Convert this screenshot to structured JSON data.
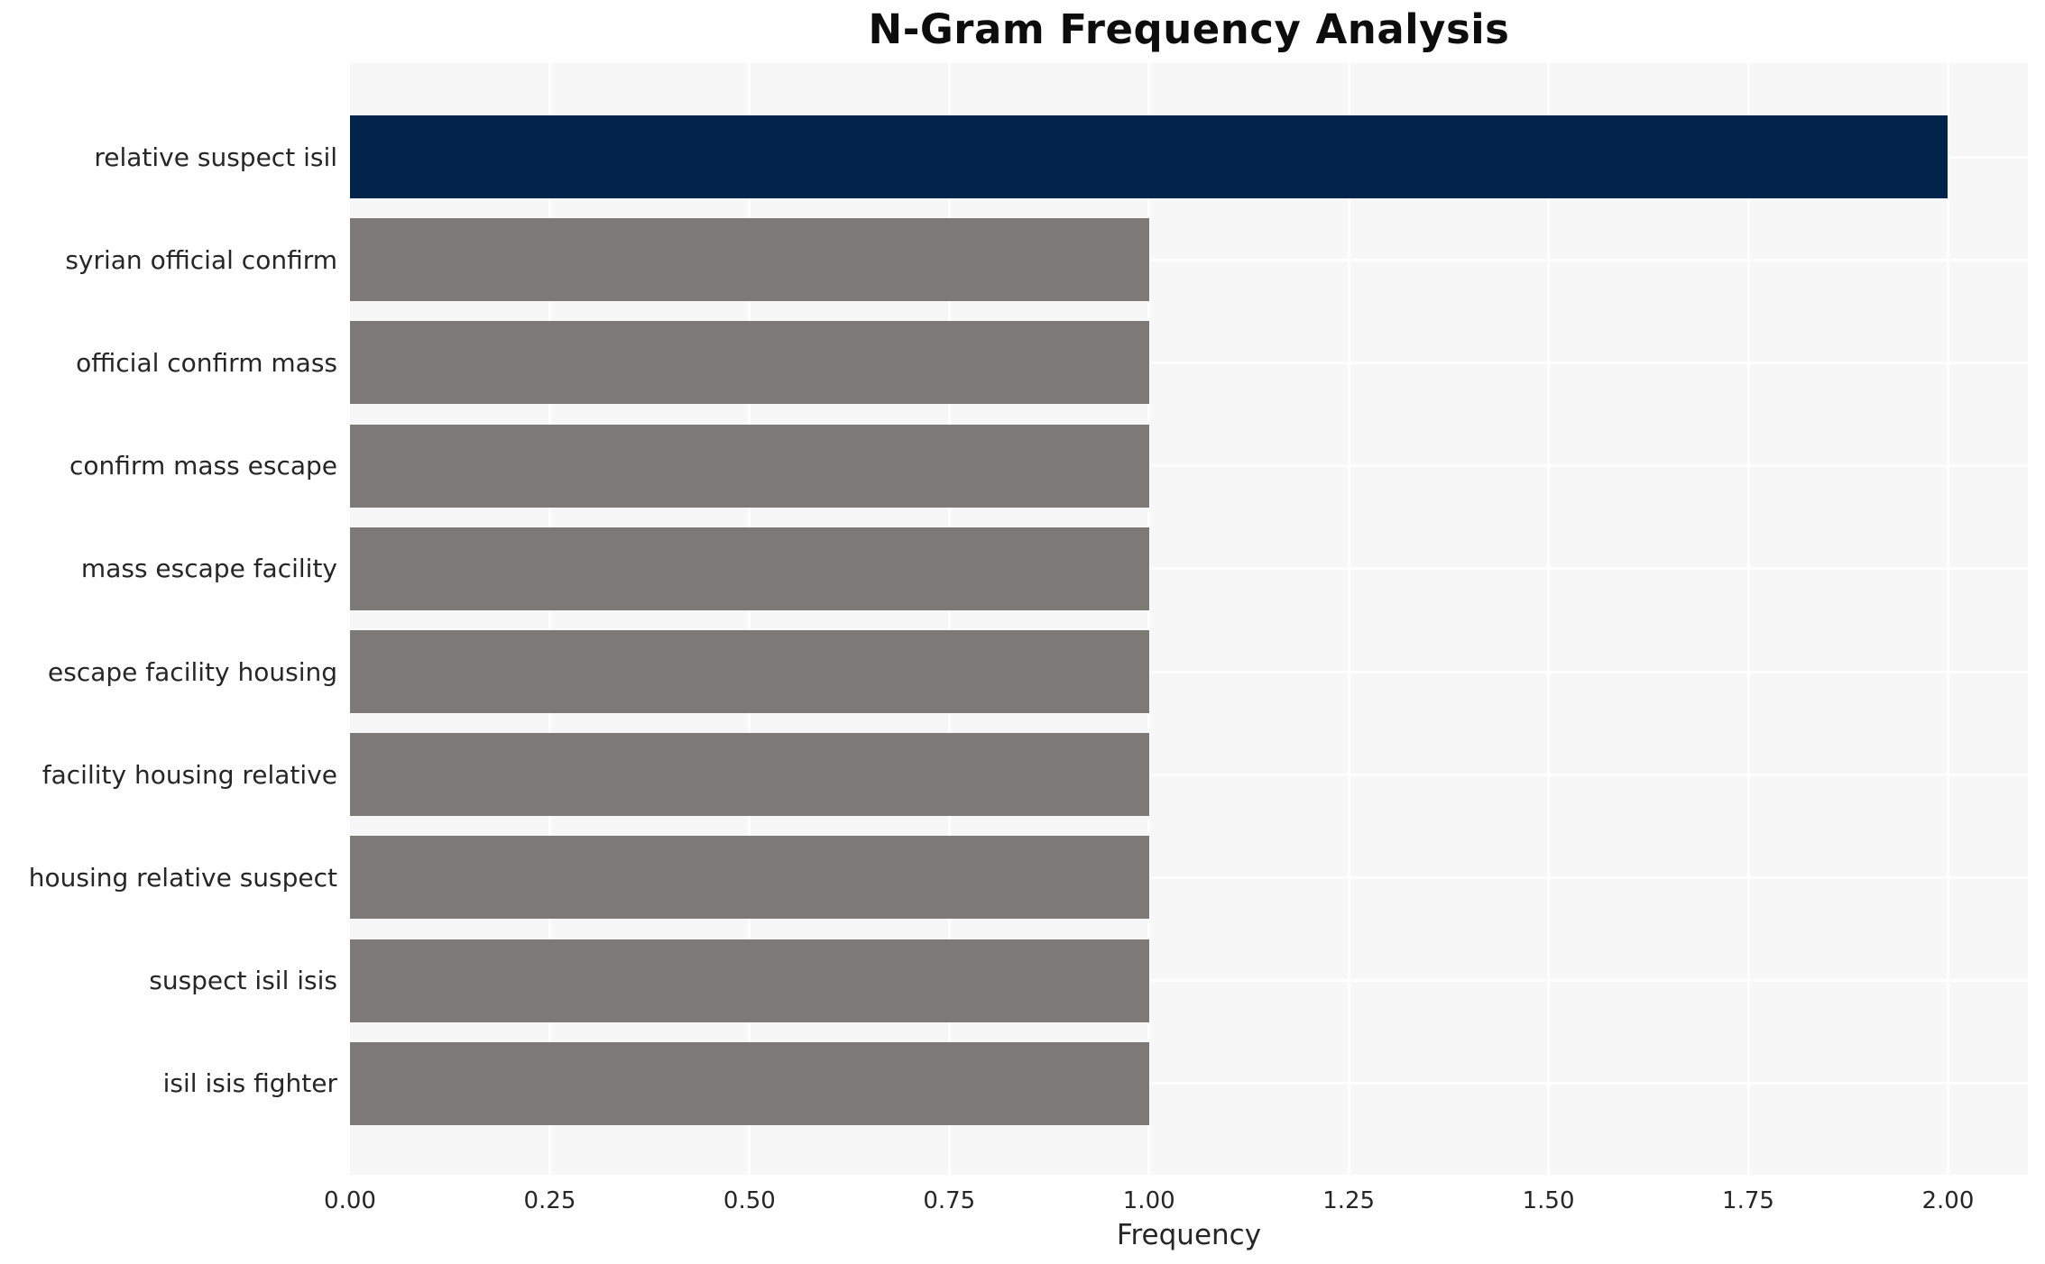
{
  "title": "N-Gram Frequency Analysis",
  "chart_data": {
    "type": "bar",
    "orientation": "horizontal",
    "title": "N-Gram Frequency Analysis",
    "xlabel": "Frequency",
    "ylabel": "",
    "categories": [
      "relative suspect isil",
      "syrian official confirm",
      "official confirm mass",
      "confirm mass escape",
      "mass escape facility",
      "escape facility housing",
      "facility housing relative",
      "housing relative suspect",
      "suspect isil isis",
      "isil isis fighter"
    ],
    "values": [
      2,
      1,
      1,
      1,
      1,
      1,
      1,
      1,
      1,
      1
    ],
    "xlim": [
      0,
      2.1
    ],
    "x_ticks": [
      0.25,
      0.5,
      0.75,
      1.0,
      1.25,
      1.5,
      1.75,
      2.0
    ],
    "x_tick_labels": [
      "0.00",
      "0.25",
      "0.50",
      "0.75",
      "1.00",
      "1.25",
      "1.50",
      "1.75",
      "2.00"
    ],
    "x_tick_values": [
      0,
      0.25,
      0.5,
      0.75,
      1.0,
      1.25,
      1.5,
      1.75,
      2.0
    ],
    "grid": true,
    "legend_position": "none",
    "colors": {
      "highlight_bar": "#02234a",
      "default_bar": "#7b7a76",
      "plot_background": "#f7f7f7",
      "gridline": "#ffffff",
      "text": "#262626",
      "title_text": "#0d0d0d"
    },
    "bar_colors": [
      "#02234a",
      "#7b7a76",
      "#7b7a76",
      "#7b7a76",
      "#7b7a76",
      "#7b7a76",
      "#7b7a76",
      "#7b7a76",
      "#7b7a76",
      "#7b7a76"
    ]
  }
}
